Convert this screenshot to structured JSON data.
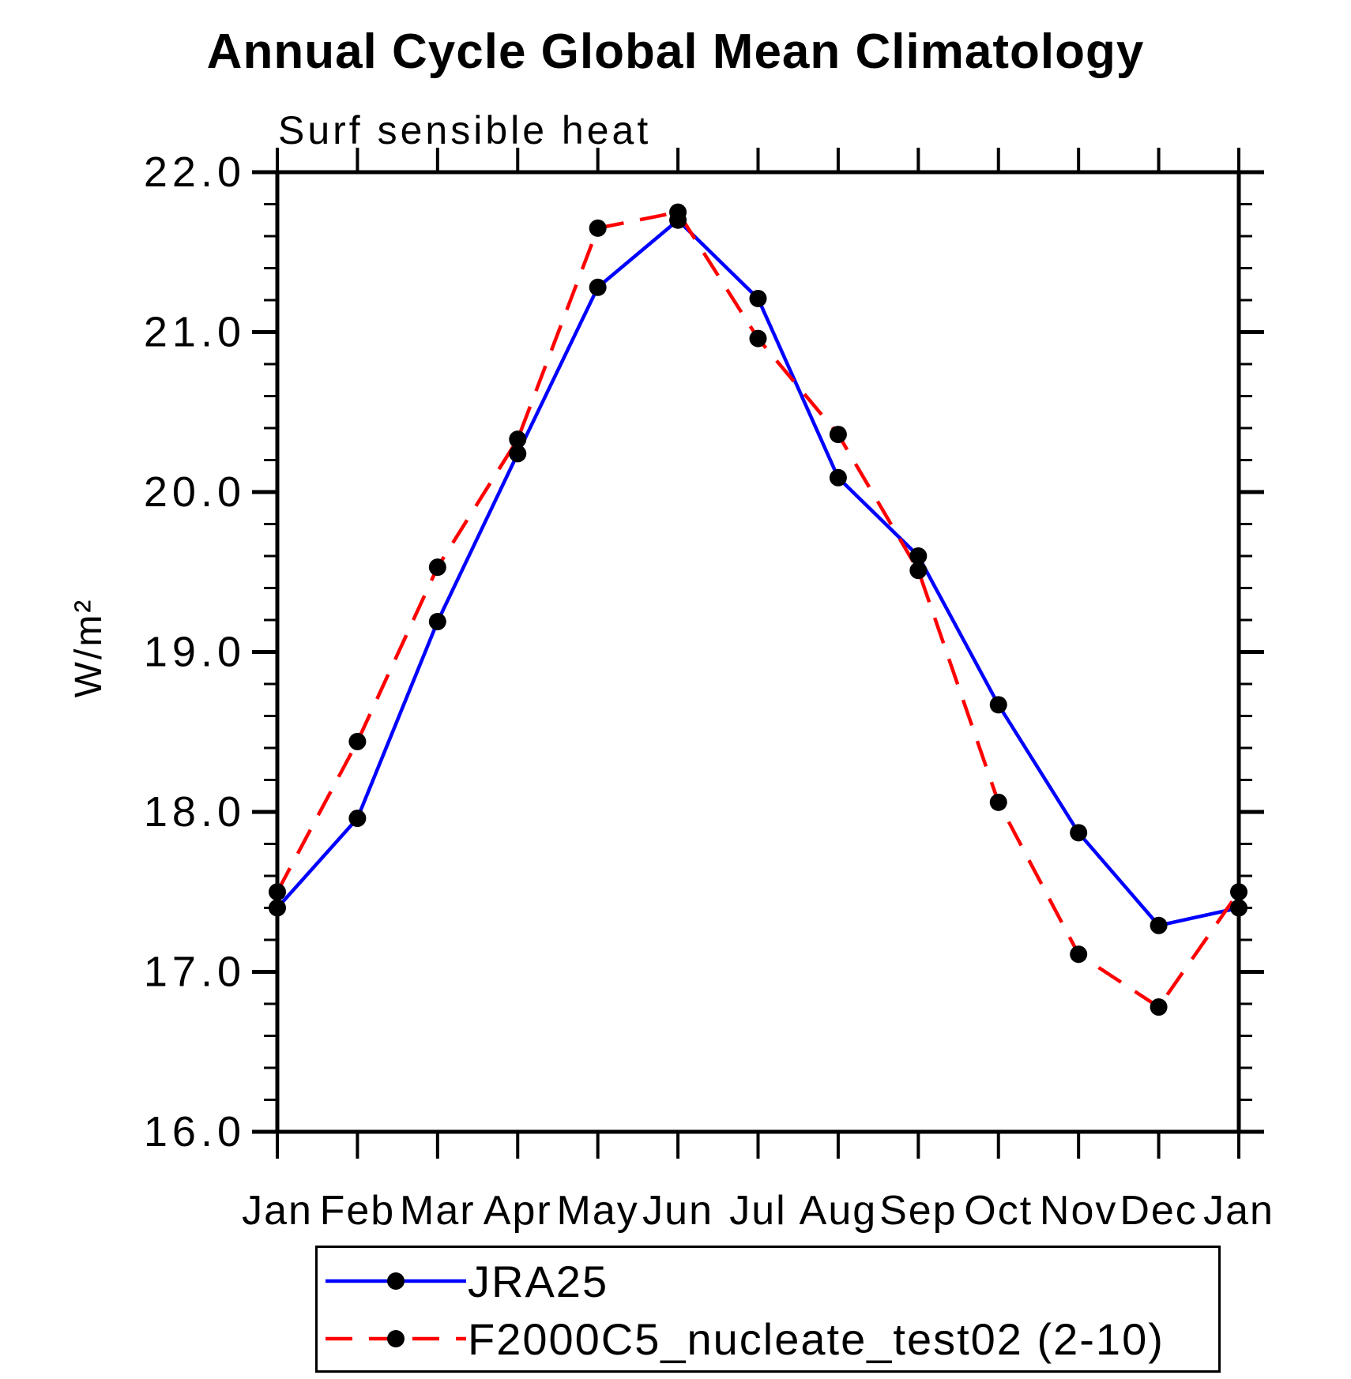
{
  "page": {
    "background": "#ffffff",
    "axis_color": "#000000",
    "text_color": "#000000"
  },
  "chart_data": {
    "type": "line",
    "title": "Annual Cycle Global Mean Climatology",
    "subtitle": "Surf sensible heat",
    "ylabel": "W/m²",
    "xlabel": "",
    "x_tick_labels": [
      "Jan",
      "Feb",
      "Mar",
      "Apr",
      "May",
      "Jun",
      "Jul",
      "Aug",
      "Sep",
      "Oct",
      "Nov",
      "Dec",
      "Jan"
    ],
    "ylim": [
      16.0,
      22.0
    ],
    "y_major_step": 1.0,
    "y_minor_step": 0.2,
    "y_major_tick_labels": [
      "22.0",
      "21.0",
      "20.0",
      "19.0",
      "18.0",
      "17.0",
      "16.0"
    ],
    "grid": false,
    "legend_position": "bottom",
    "series": [
      {
        "name": "JRA25",
        "color": "#0000ff",
        "line_style": "solid",
        "marker": "circle",
        "marker_color": "#000000",
        "values": [
          17.4,
          17.96,
          19.19,
          20.24,
          21.28,
          21.7,
          21.21,
          20.09,
          19.6,
          18.67,
          17.87,
          17.29,
          17.4
        ]
      },
      {
        "name": "F2000C5_nucleate_test02 (2-10)",
        "color": "#ff0000",
        "line_style": "dashed",
        "marker": "circle",
        "marker_color": "#000000",
        "values": [
          17.5,
          18.44,
          19.53,
          20.33,
          21.65,
          21.75,
          20.96,
          20.36,
          19.51,
          18.06,
          17.11,
          16.78,
          17.5
        ]
      }
    ]
  }
}
